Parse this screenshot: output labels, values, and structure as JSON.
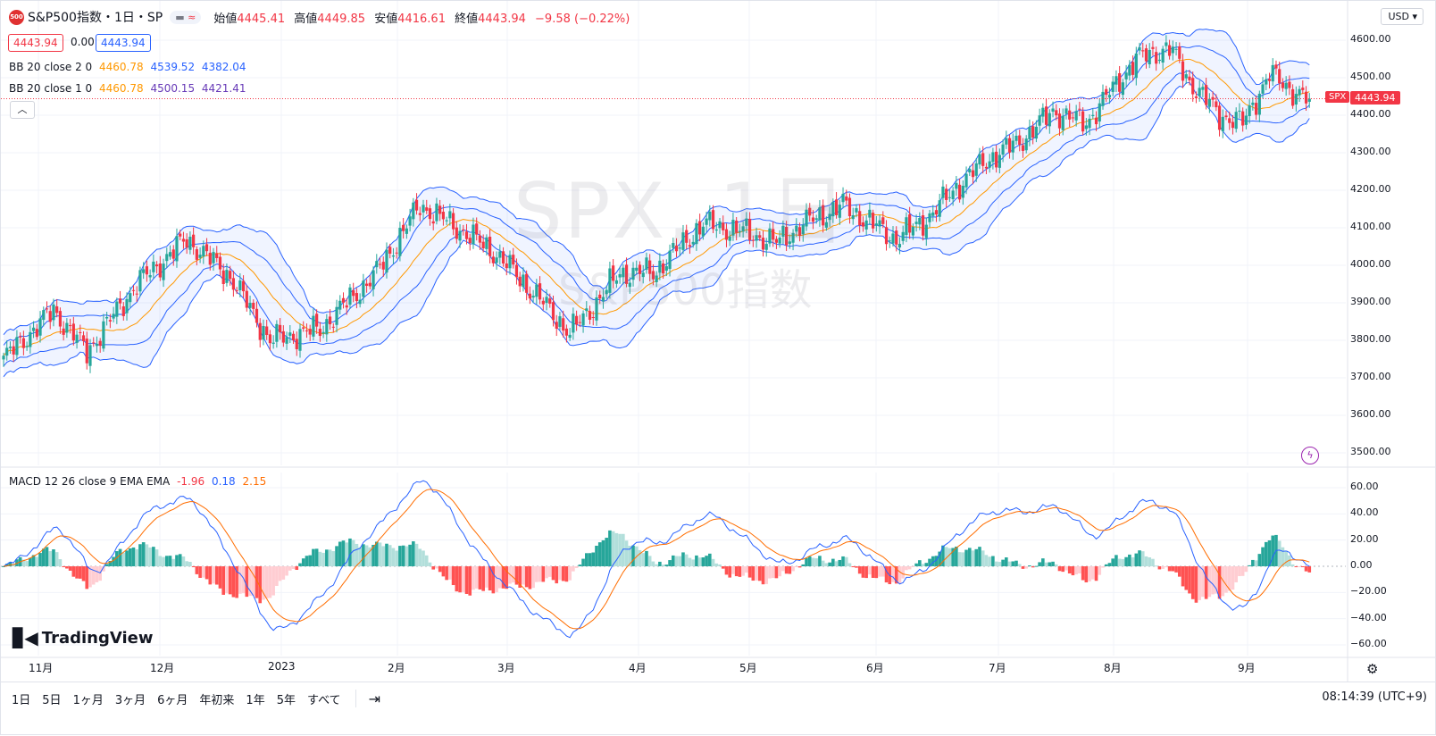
{
  "header": {
    "logo_text": "500",
    "title": "S&P500指数・1日・SP",
    "pill_left": "▬",
    "pill_right": "≈",
    "ohlc": [
      {
        "label": "始値",
        "value": "4445.41"
      },
      {
        "label": "高値",
        "value": "4449.85"
      },
      {
        "label": "安値",
        "value": "4416.61"
      },
      {
        "label": "終値",
        "value": "4443.94"
      },
      {
        "label": "",
        "value": "−9.58 (−0.22%)"
      }
    ]
  },
  "quote_boxes": {
    "sell": "4443.94",
    "spread": "0.00",
    "buy": "4443.94"
  },
  "indicators": {
    "bb2": {
      "label": "BB 20 close 2 0",
      "basis": "4460.78",
      "upper": "4539.52",
      "lower": "4382.04"
    },
    "bb1": {
      "label": "BB 20 close 1 0",
      "basis": "4460.78",
      "upper": "4500.15",
      "lower": "4421.41"
    },
    "macd": {
      "label": "MACD 12 26 close 9 EMA EMA",
      "hist": "-1.96",
      "macd": "0.18",
      "signal": "2.15"
    }
  },
  "watermark": {
    "symbol": "SPX, 1日",
    "name": "S&P500指数"
  },
  "price_axis": {
    "currency": "USD",
    "ticks": [
      "4600.00",
      "4500.00",
      "4400.00",
      "4300.00",
      "4200.00",
      "4100.00",
      "4000.00",
      "3900.00",
      "3800.00",
      "3700.00",
      "3600.00",
      "3500.00"
    ],
    "last_symbol": "SPX",
    "last_price": "4443.94"
  },
  "macd_axis": {
    "ticks": [
      "60.00",
      "40.00",
      "20.00",
      "0.00",
      "−20.00",
      "−40.00",
      "−60.00"
    ]
  },
  "time_axis": {
    "labels": [
      "11月",
      "12月",
      "2023",
      "2月",
      "3月",
      "4月",
      "5月",
      "6月",
      "7月",
      "8月",
      "9月"
    ]
  },
  "brand": "TradingView",
  "timeframes": [
    "1日",
    "5日",
    "1ヶ月",
    "3ヶ月",
    "6ヶ月",
    "年初来",
    "1年",
    "5年",
    "すべて"
  ],
  "clock": "08:14:39 (UTC+9)",
  "colors": {
    "up": "#26a69a",
    "down": "#f23645",
    "bb_outer": "#2962ff",
    "bb_basis": "#ff9800",
    "bb_fill": "#e3f2fd",
    "macd": "#2962ff",
    "signal": "#ff6d00"
  },
  "chart_data": {
    "type": "candlestick",
    "price_ylim": [
      3480,
      4620
    ],
    "daily_close_path": [
      [
        0,
        3750
      ],
      [
        15,
        3880
      ],
      [
        25,
        3770
      ],
      [
        40,
        3950
      ],
      [
        55,
        4070
      ],
      [
        68,
        3970
      ],
      [
        80,
        3800
      ],
      [
        95,
        3830
      ],
      [
        103,
        3900
      ],
      [
        112,
        3980
      ],
      [
        125,
        4160
      ],
      [
        138,
        4090
      ],
      [
        148,
        4030
      ],
      [
        162,
        3900
      ],
      [
        170,
        3820
      ],
      [
        176,
        3880
      ],
      [
        185,
        3980
      ],
      [
        195,
        3980
      ],
      [
        210,
        4110
      ],
      [
        222,
        4090
      ],
      [
        232,
        4060
      ],
      [
        240,
        4110
      ],
      [
        252,
        4160
      ],
      [
        268,
        4070
      ],
      [
        278,
        4130
      ],
      [
        285,
        4200
      ],
      [
        295,
        4280
      ],
      [
        305,
        4330
      ],
      [
        315,
        4410
      ],
      [
        325,
        4380
      ],
      [
        340,
        4550
      ],
      [
        350,
        4580
      ],
      [
        356,
        4490
      ],
      [
        365,
        4400
      ],
      [
        372,
        4380
      ],
      [
        380,
        4510
      ],
      [
        388,
        4460
      ],
      [
        392,
        4444
      ]
    ],
    "macd_ylim": [
      -70,
      70
    ],
    "note_x": "x = trading-day index from first visible bar"
  }
}
